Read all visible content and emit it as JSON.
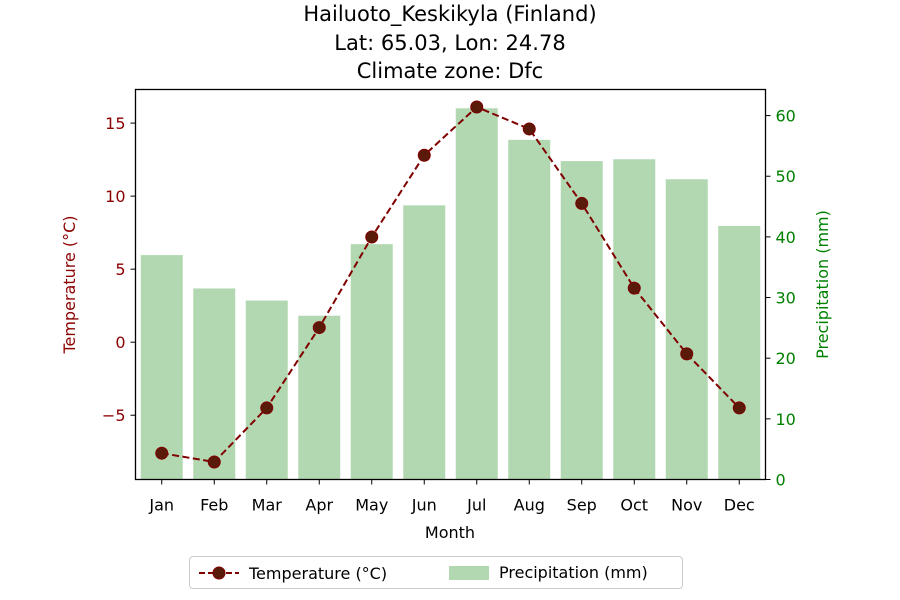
{
  "title": {
    "line1": "Hailuoto_Keskikyla (Finland)",
    "line2": "Lat: 65.03, Lon: 24.78",
    "line3": "Climate zone: Dfc"
  },
  "colors": {
    "temperature": "#800000",
    "temperature_marker": "#5a1a0a",
    "precipitation": "#b2d8b2",
    "precip_axis": "#008000",
    "temp_axis": "#8b0000"
  },
  "legend": {
    "temperature": "Temperature (°C)",
    "precipitation": "Precipitation (mm)"
  },
  "chart_data": {
    "type": "bar+line",
    "title": "Hailuoto_Keskikyla (Finland)\nLat: 65.03, Lon: 24.78\nClimate zone: Dfc",
    "xlabel": "Month",
    "categories": [
      "Jan",
      "Feb",
      "Mar",
      "Apr",
      "May",
      "Jun",
      "Jul",
      "Aug",
      "Sep",
      "Oct",
      "Nov",
      "Dec"
    ],
    "series": [
      {
        "name": "Temperature (°C)",
        "type": "line",
        "axis": "left",
        "values": [
          -7.6,
          -8.2,
          -4.5,
          1.0,
          7.2,
          12.8,
          16.1,
          14.6,
          9.5,
          3.7,
          -0.8,
          -4.5
        ]
      },
      {
        "name": "Precipitation (mm)",
        "type": "bar",
        "axis": "right",
        "values": [
          37.0,
          31.5,
          29.5,
          27.0,
          38.8,
          45.2,
          61.2,
          56.0,
          52.5,
          52.8,
          49.5,
          41.8
        ]
      }
    ],
    "ylabel_left": "Temperature (°C)",
    "ylabel_right": "Precipitation (mm)",
    "ylim_left": [
      -9.4,
      17.3
    ],
    "ylim_right": [
      0,
      64.3
    ],
    "yticks_left": [
      -5,
      0,
      5,
      10,
      15
    ],
    "ytick_labels_left": [
      "−5",
      "0",
      "5",
      "10",
      "15"
    ],
    "yticks_right": [
      0,
      10,
      20,
      30,
      40,
      50,
      60
    ],
    "ytick_labels_right": [
      "0",
      "10",
      "20",
      "30",
      "40",
      "50",
      "60"
    ],
    "grid": false,
    "legend_position": "bottom-center"
  }
}
